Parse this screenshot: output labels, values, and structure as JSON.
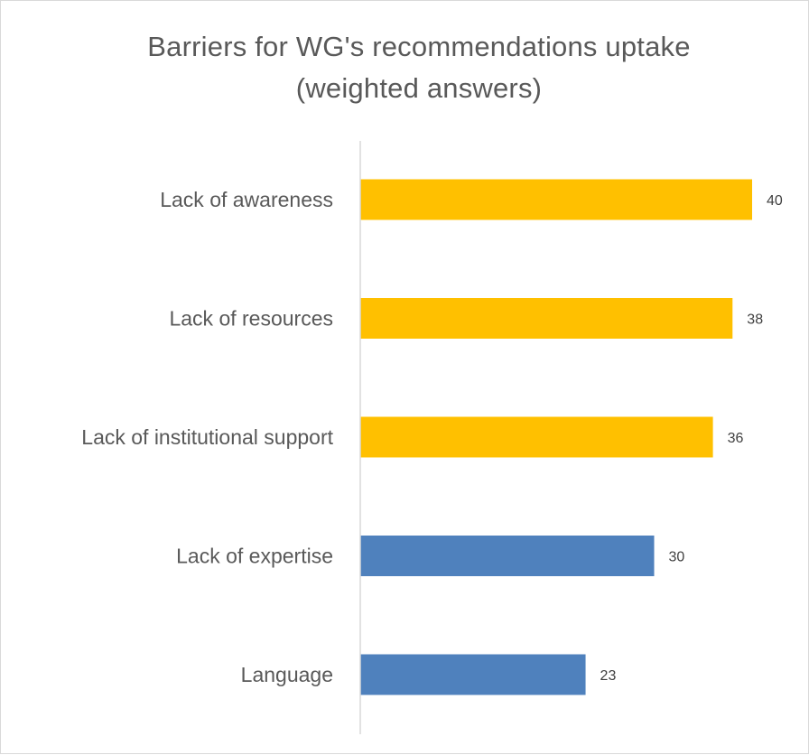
{
  "chart_data": {
    "type": "bar",
    "orientation": "horizontal",
    "title_lines": [
      "Barriers for WG's recommendations uptake",
      "(weighted answers)"
    ],
    "categories": [
      "Lack of awareness",
      "Lack of resources",
      "Lack of institutional support",
      "Lack of expertise",
      "Language"
    ],
    "values": [
      40,
      38,
      36,
      30,
      23
    ],
    "bar_colors": [
      "#FFC000",
      "#FFC000",
      "#FFC000",
      "#4F81BD",
      "#4F81BD"
    ],
    "xlim": [
      0,
      40
    ],
    "xlabel": "",
    "ylabel": "",
    "grid": false,
    "legend": "none",
    "data_labels": true
  }
}
